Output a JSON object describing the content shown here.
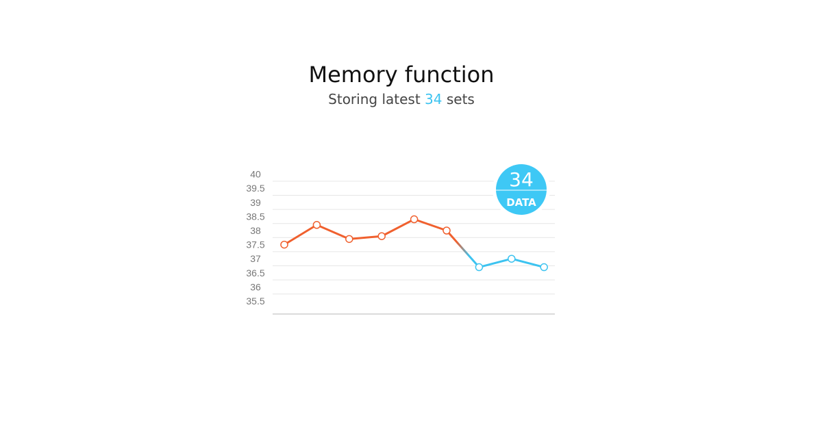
{
  "header": {
    "title": "Memory function",
    "subtitle_prefix": "Storing latest",
    "subtitle_count": "34",
    "subtitle_suffix": "sets"
  },
  "badge": {
    "number": "34",
    "label": "DATA",
    "color": "#3ec8f5"
  },
  "chart_data": {
    "type": "line",
    "title": "",
    "xlabel": "",
    "ylabel": "",
    "ylim": [
      35.5,
      40
    ],
    "y_ticks": [
      "40",
      "39.5",
      "39",
      "38.5",
      "38",
      "37.5",
      "37",
      "36.5",
      "36",
      "35.5"
    ],
    "grid": true,
    "x": [
      1,
      2,
      3,
      4,
      5,
      6,
      7,
      8,
      9
    ],
    "values": [
      37.5,
      38.2,
      37.7,
      37.8,
      38.4,
      38.0,
      36.7,
      37.0,
      36.7
    ],
    "colors": {
      "earlier": "#f0602e",
      "recent": "#3cc3f0"
    },
    "recent_from_index": 6
  }
}
